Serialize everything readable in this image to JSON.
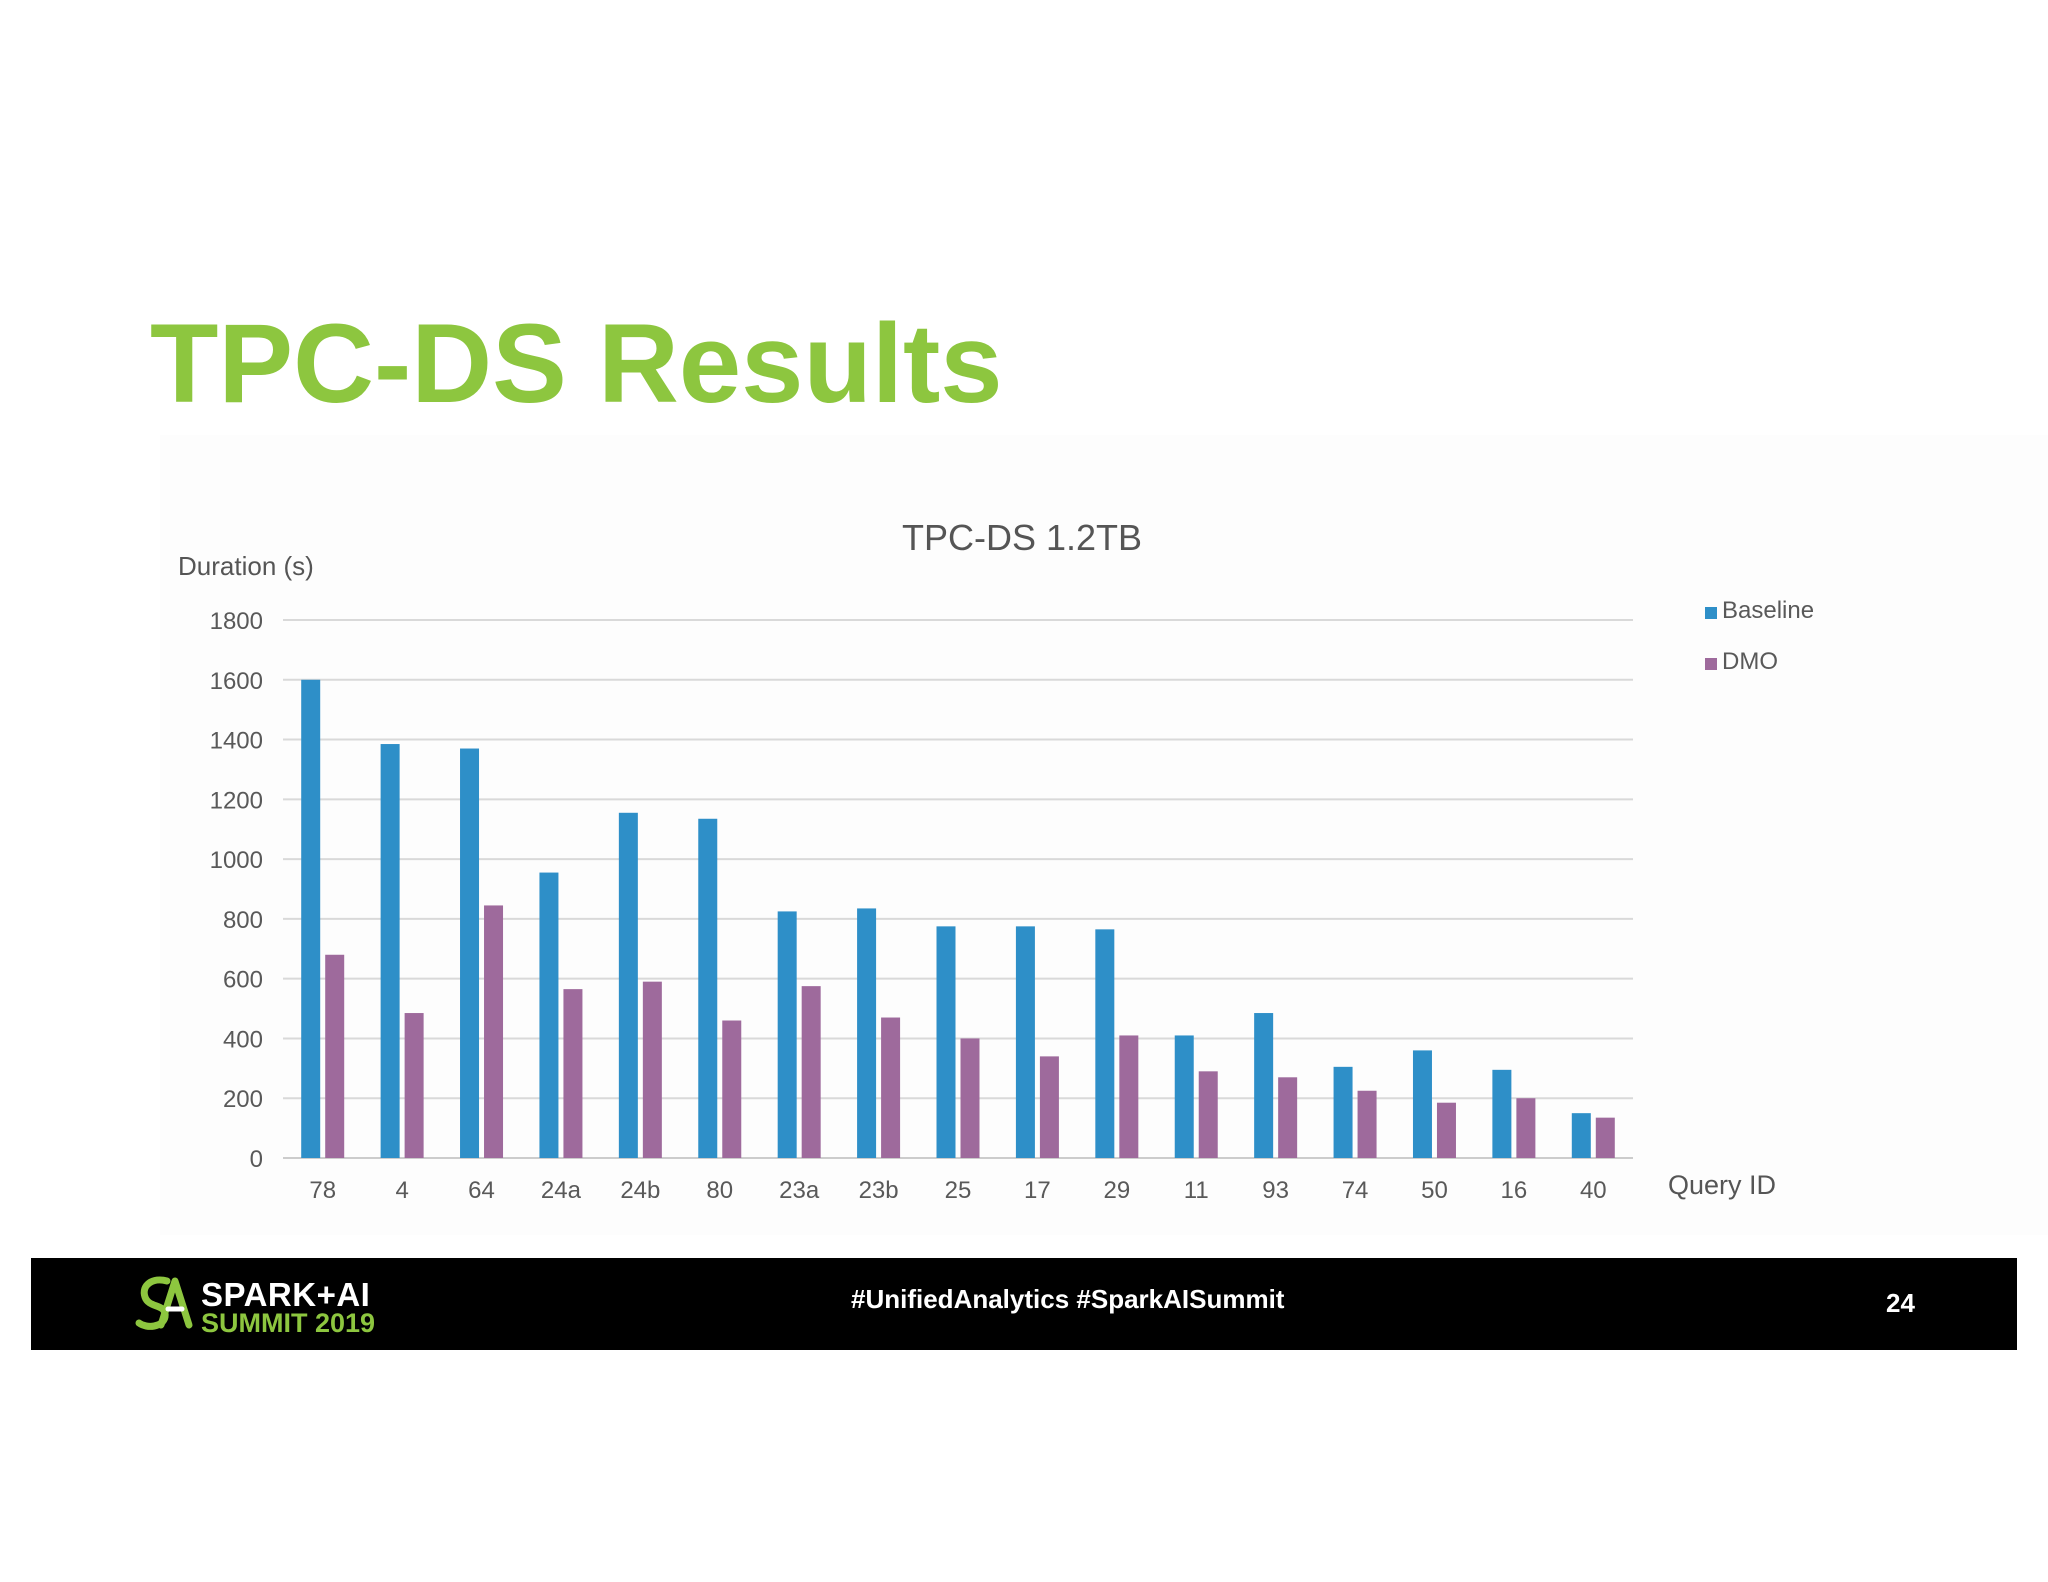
{
  "slide": {
    "title": "TPC-DS Results",
    "number": "24"
  },
  "footer": {
    "brand_line1": "SPARK+AI",
    "brand_line2": "SUMMIT 2019",
    "hashtags": "#UnifiedAnalytics #SparkAISummit"
  },
  "colors": {
    "title": "#8dc63f",
    "baseline": "#2e8fc8",
    "dmo": "#9e6a9c",
    "footer_bg": "#000000"
  },
  "chart_data": {
    "type": "bar",
    "title": "TPC-DS 1.2TB",
    "ylabel": "Duration (s)",
    "xlabel": "Query ID",
    "ylim": [
      0,
      1800
    ],
    "yticks": [
      0,
      200,
      400,
      600,
      800,
      1000,
      1200,
      1400,
      1600,
      1800
    ],
    "grid": true,
    "legend_position": "top-right",
    "categories": [
      "78",
      "4",
      "64",
      "24a",
      "24b",
      "80",
      "23a",
      "23b",
      "25",
      "17",
      "29",
      "11",
      "93",
      "74",
      "50",
      "16",
      "40"
    ],
    "series": [
      {
        "name": "Baseline",
        "color": "#2e8fc8",
        "values": [
          1600,
          1385,
          1370,
          955,
          1155,
          1135,
          825,
          835,
          775,
          775,
          765,
          410,
          485,
          305,
          360,
          295,
          150
        ]
      },
      {
        "name": "DMO",
        "color": "#9e6a9c",
        "values": [
          680,
          485,
          845,
          565,
          590,
          460,
          575,
          470,
          400,
          340,
          410,
          290,
          270,
          225,
          185,
          200,
          135
        ]
      }
    ]
  }
}
